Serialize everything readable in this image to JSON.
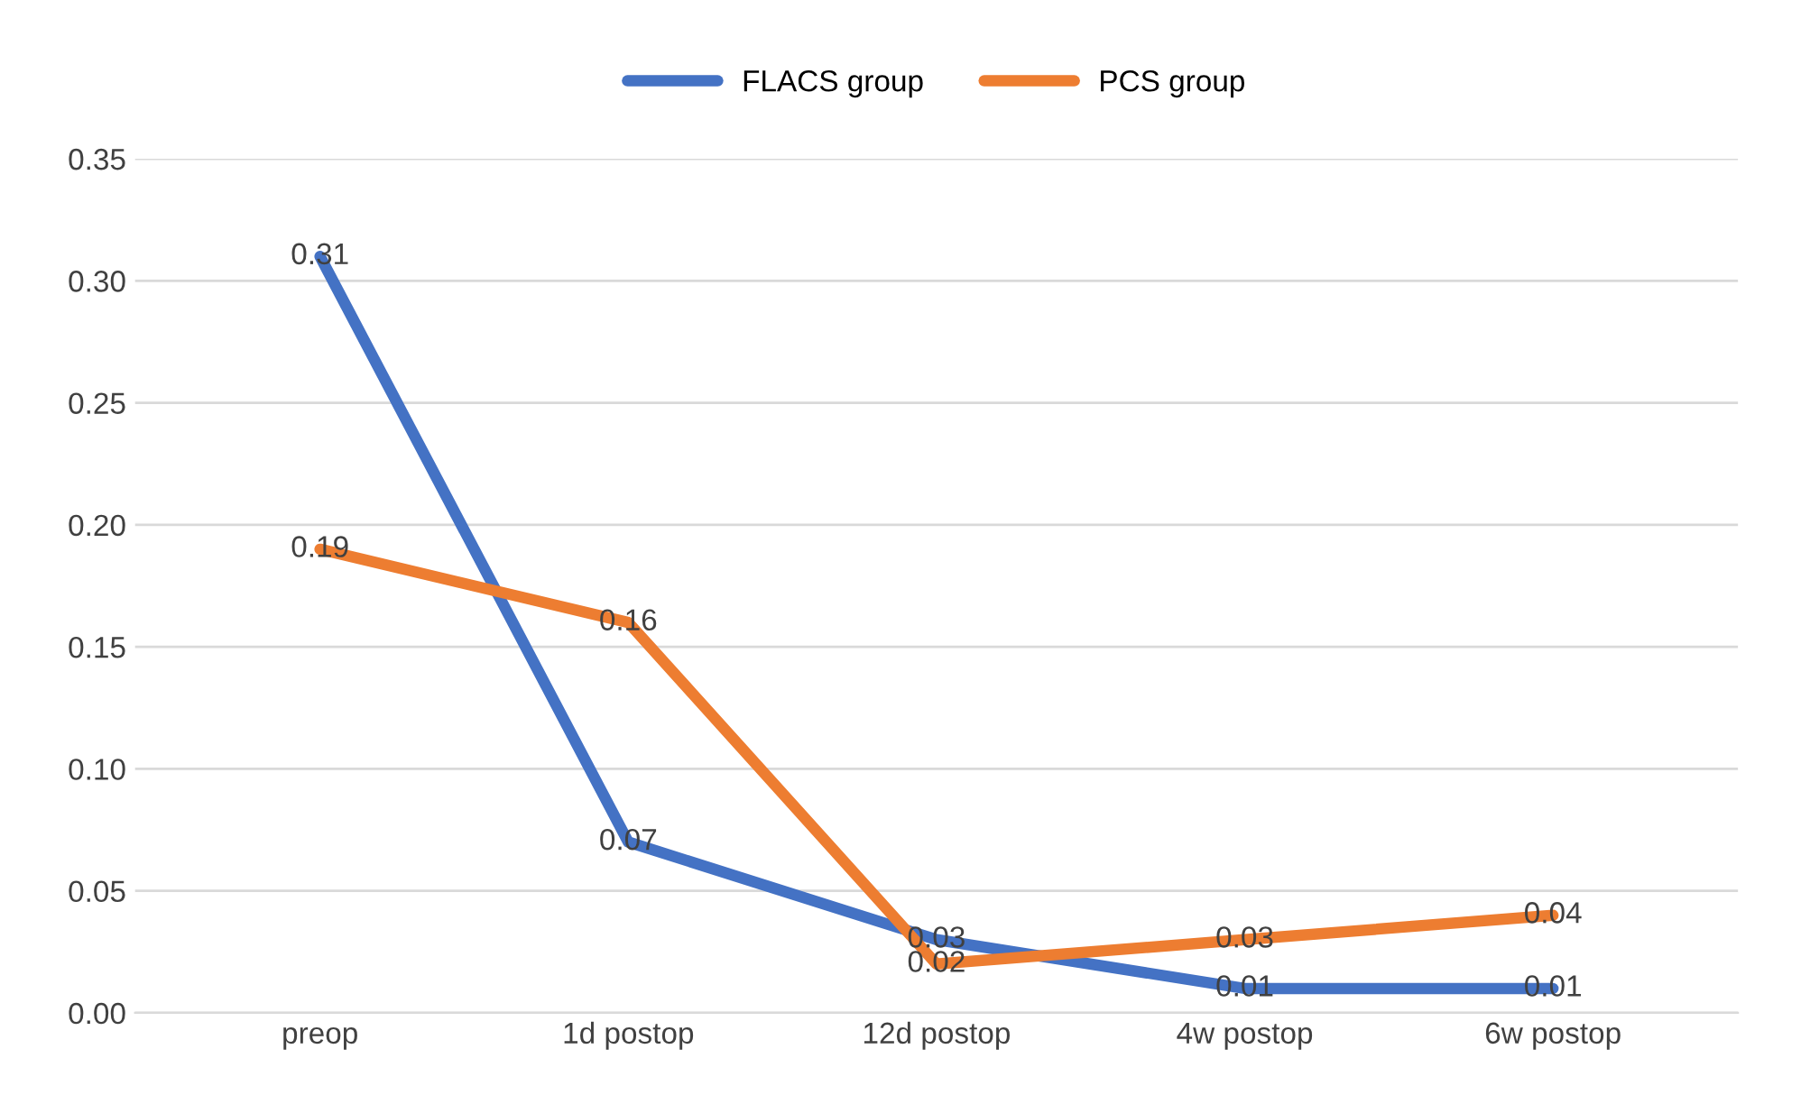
{
  "chart_data": {
    "type": "line",
    "categories": [
      "preop",
      "1d postop",
      "12d postop",
      "4w postop",
      "6w postop"
    ],
    "series": [
      {
        "name": "FLACS group",
        "color": "#4472c4",
        "values": [
          0.31,
          0.07,
          0.03,
          0.01,
          0.01
        ]
      },
      {
        "name": "PCS group",
        "color": "#ed7d31",
        "values": [
          0.19,
          0.16,
          0.02,
          0.03,
          0.04
        ]
      }
    ],
    "ylim": [
      0,
      0.35
    ],
    "yticks": [
      {
        "value": 0,
        "label": "0.00"
      },
      {
        "value": 0.05,
        "label": "0.05"
      },
      {
        "value": 0.1,
        "label": "0.10"
      },
      {
        "value": 0.15,
        "label": "0.15"
      },
      {
        "value": 0.2,
        "label": "0.20"
      },
      {
        "value": 0.25,
        "label": "0.25"
      },
      {
        "value": 0.3,
        "label": "0.30"
      },
      {
        "value": 0.35,
        "label": "0.35"
      }
    ],
    "grid": "y",
    "legend": "top",
    "data_labels": true,
    "marker": "none",
    "line_style": "solid"
  }
}
